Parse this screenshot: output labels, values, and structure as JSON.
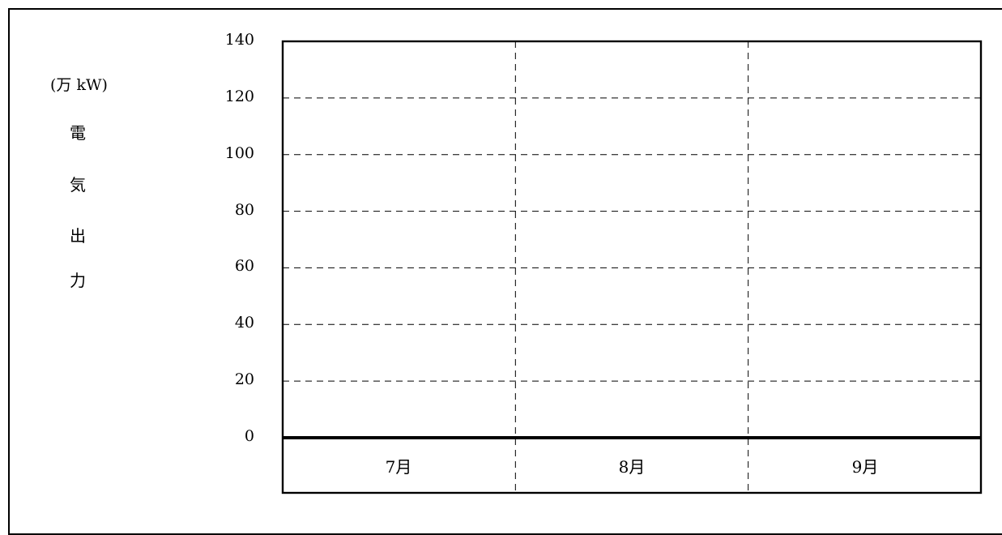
{
  "chart_data": {
    "type": "bar",
    "title": "",
    "unit_label": "(万 kW)",
    "ylabel_chars": [
      "電",
      "気",
      "出",
      "力"
    ],
    "categories": [
      "7月",
      "8月",
      "9月"
    ],
    "yticks": [
      "0",
      "20",
      "40",
      "60",
      "80",
      "100",
      "120",
      "140"
    ],
    "ylim": [
      0,
      140
    ],
    "grid": true,
    "series": []
  }
}
